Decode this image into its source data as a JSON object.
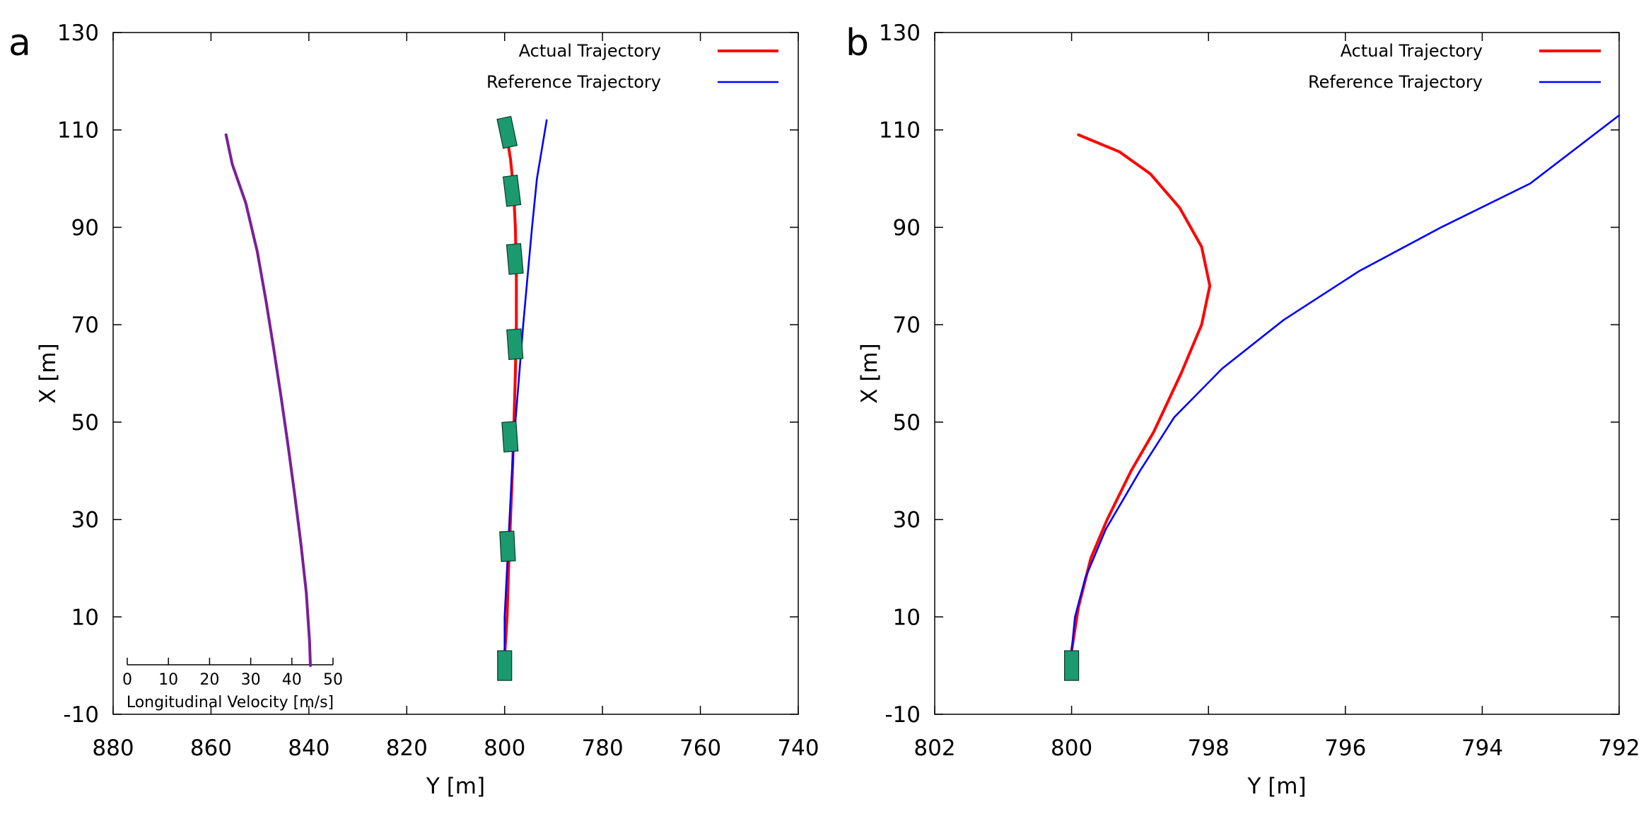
{
  "chart_data": [
    {
      "type": "line",
      "panel_label": "a",
      "xlabel": "Y [m]",
      "ylabel": "X [m]",
      "xlim": [
        880,
        740
      ],
      "ylim": [
        -10,
        130
      ],
      "xticks": [
        880,
        860,
        840,
        820,
        800,
        780,
        760,
        740
      ],
      "yticks": [
        -10,
        10,
        30,
        50,
        70,
        90,
        110,
        130
      ],
      "legend_position": "top-right",
      "series": [
        {
          "name": "Actual Trajectory",
          "color": "#ff0000",
          "points": [
            [
              800,
              2
            ],
            [
              799.5,
              10
            ],
            [
              799.2,
              20
            ],
            [
              798.8,
              30
            ],
            [
              798.4,
              40
            ],
            [
              798.1,
              50
            ],
            [
              797.8,
              60
            ],
            [
              797.6,
              70
            ],
            [
              797.6,
              80
            ],
            [
              797.8,
              90
            ],
            [
              798.2,
              98
            ],
            [
              798.8,
              104
            ],
            [
              799.6,
              109
            ]
          ]
        },
        {
          "name": "Reference Trajectory",
          "color": "#0000ff",
          "points": [
            [
              800,
              2
            ],
            [
              800,
              10
            ],
            [
              799.5,
              20
            ],
            [
              799,
              30
            ],
            [
              798.5,
              40
            ],
            [
              797.8,
              50
            ],
            [
              797,
              60
            ],
            [
              796.2,
              70
            ],
            [
              795.3,
              80
            ],
            [
              794.4,
              90
            ],
            [
              793.4,
              100
            ],
            [
              792.4,
              106
            ],
            [
              791.4,
              112
            ]
          ]
        }
      ],
      "vehicles": {
        "color": "#1a9a6e",
        "poses": [
          [
            800,
            0,
            0
          ],
          [
            799.4,
            24.5,
            3
          ],
          [
            798.9,
            47,
            4
          ],
          [
            797.9,
            66,
            4
          ],
          [
            797.9,
            83.5,
            5
          ],
          [
            798.5,
            97.5,
            7
          ],
          [
            799.5,
            109.5,
            12
          ]
        ]
      },
      "inset": {
        "xlabel": "Longitudinal Velocity [m/s]",
        "xticks": [
          0,
          10,
          20,
          30,
          40,
          50
        ],
        "xlim": [
          0,
          50
        ],
        "color": "#7a1f9a",
        "points": [
          [
            44.5,
            0
          ],
          [
            44.3,
            5
          ],
          [
            43.5,
            15
          ],
          [
            42.2,
            25
          ],
          [
            40.7,
            35
          ],
          [
            39.1,
            45
          ],
          [
            37.4,
            55
          ],
          [
            35.6,
            65
          ],
          [
            33.7,
            75
          ],
          [
            31.6,
            85
          ],
          [
            28.8,
            95
          ],
          [
            25.5,
            103
          ],
          [
            24,
            109
          ]
        ]
      }
    },
    {
      "type": "line",
      "panel_label": "b",
      "xlabel": "Y [m]",
      "ylabel": "X [m]",
      "xlim": [
        802,
        792
      ],
      "ylim": [
        -10,
        130
      ],
      "xticks": [
        802,
        800,
        798,
        796,
        794,
        792
      ],
      "yticks": [
        -10,
        10,
        30,
        50,
        70,
        90,
        110,
        130
      ],
      "legend_position": "top-right",
      "series": [
        {
          "name": "Actual Trajectory",
          "color": "#ff0000",
          "points": [
            [
              800,
              3
            ],
            [
              799.9,
              12
            ],
            [
              799.72,
              22
            ],
            [
              799.48,
              30
            ],
            [
              799.13,
              40
            ],
            [
              798.8,
              48
            ],
            [
              798.4,
              60
            ],
            [
              798.1,
              70
            ],
            [
              797.98,
              78
            ],
            [
              798.1,
              86
            ],
            [
              798.42,
              94
            ],
            [
              798.85,
              101
            ],
            [
              799.3,
              105.5
            ],
            [
              799.9,
              109
            ]
          ]
        },
        {
          "name": "Reference Trajectory",
          "color": "#0000ff",
          "points": [
            [
              800,
              3
            ],
            [
              799.95,
              10
            ],
            [
              799.8,
              18
            ],
            [
              799.5,
              28
            ],
            [
              799.0,
              40
            ],
            [
              798.5,
              51
            ],
            [
              797.8,
              61
            ],
            [
              796.9,
              71
            ],
            [
              795.8,
              81
            ],
            [
              794.6,
              90
            ],
            [
              793.3,
              99
            ],
            [
              792,
              113
            ]
          ]
        }
      ],
      "vehicles": {
        "color": "#1a9a6e",
        "poses": [
          [
            800,
            0,
            0
          ]
        ]
      }
    }
  ]
}
